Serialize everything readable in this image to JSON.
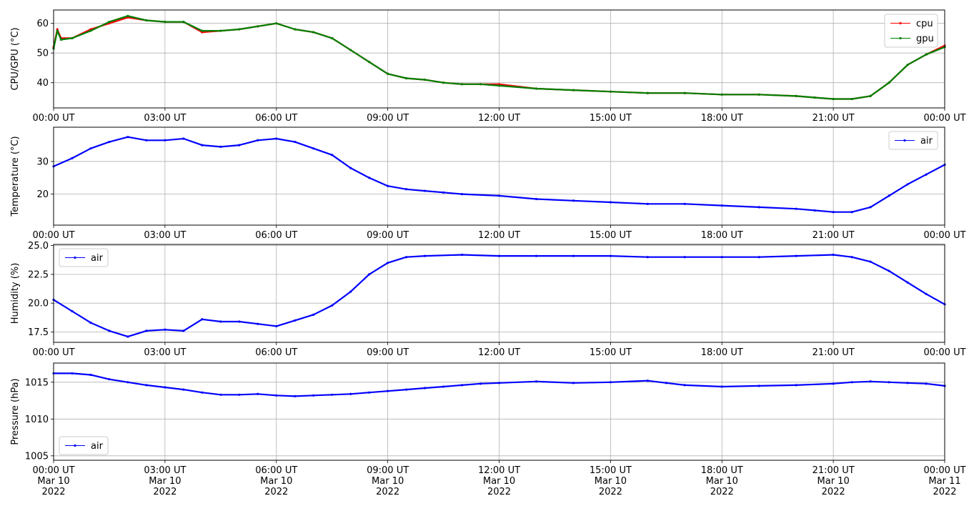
{
  "chart_data": [
    {
      "type": "line",
      "ylabel": "CPU/GPU (°C)",
      "ylim": [
        31.5,
        64.5
      ],
      "yticks": [
        40,
        50,
        60
      ],
      "xlim": [
        0,
        24
      ],
      "grid": true,
      "legend_position": "top-right",
      "x_tick_labels": [
        "00:00 UT",
        "03:00 UT",
        "06:00 UT",
        "09:00 UT",
        "12:00 UT",
        "15:00 UT",
        "18:00 UT",
        "21:00 UT",
        "00:00 UT"
      ],
      "series": [
        {
          "name": "cpu",
          "color": "#ff0000",
          "x": [
            0,
            0.1,
            0.2,
            0.5,
            1,
            1.5,
            2,
            2.5,
            3,
            3.5,
            4,
            4.5,
            5,
            5.5,
            6,
            6.5,
            7,
            7.5,
            8,
            8.5,
            9,
            9.5,
            10,
            10.5,
            11,
            11.5,
            12,
            13,
            14,
            15,
            16,
            17,
            18,
            19,
            20,
            20.5,
            21,
            21.5,
            22,
            22.5,
            23,
            23.5,
            24
          ],
          "y": [
            52,
            58,
            55,
            55,
            58,
            60,
            62,
            61,
            60.5,
            60.5,
            57,
            57.5,
            58,
            59,
            60,
            58,
            57,
            55,
            51,
            47,
            43,
            41.5,
            41,
            40,
            39.5,
            39.5,
            39.5,
            38,
            37.5,
            37,
            36.5,
            36.5,
            36,
            36,
            35.5,
            35,
            34.5,
            34.5,
            35.5,
            40,
            46,
            49.5,
            52.5
          ]
        },
        {
          "name": "gpu",
          "color": "#008000",
          "x": [
            0,
            0.1,
            0.2,
            0.5,
            1,
            1.5,
            2,
            2.5,
            3,
            3.5,
            4,
            4.5,
            5,
            5.5,
            6,
            6.5,
            7,
            7.5,
            8,
            8.5,
            9,
            9.5,
            10,
            10.5,
            11,
            11.5,
            12,
            13,
            14,
            15,
            16,
            17,
            18,
            19,
            20,
            20.5,
            21,
            21.5,
            22,
            22.5,
            23,
            23.5,
            24
          ],
          "y": [
            51.5,
            57.5,
            54.5,
            55,
            57.5,
            60.5,
            62.5,
            61,
            60.5,
            60.5,
            57.5,
            57.5,
            58,
            59,
            60,
            58,
            57,
            55,
            51,
            47,
            43,
            41.5,
            41,
            40,
            39.5,
            39.5,
            39,
            38,
            37.5,
            37,
            36.5,
            36.5,
            36,
            36,
            35.5,
            35,
            34.5,
            34.5,
            35.5,
            40,
            46,
            49.5,
            52
          ]
        }
      ]
    },
    {
      "type": "line",
      "ylabel": "Temperature (°C)",
      "ylim": [
        10.5,
        40.5
      ],
      "yticks": [
        20,
        30
      ],
      "xlim": [
        0,
        24
      ],
      "grid": true,
      "legend_position": "top-right",
      "x_tick_labels": [
        "00:00 UT",
        "03:00 UT",
        "06:00 UT",
        "09:00 UT",
        "12:00 UT",
        "15:00 UT",
        "18:00 UT",
        "21:00 UT",
        "00:00 UT"
      ],
      "series": [
        {
          "name": "air",
          "color": "#0000ff",
          "x": [
            0,
            0.5,
            1,
            1.5,
            2,
            2.5,
            3,
            3.5,
            4,
            4.5,
            5,
            5.5,
            6,
            6.5,
            7,
            7.5,
            8,
            8.5,
            9,
            9.5,
            10,
            10.5,
            11,
            12,
            13,
            14,
            15,
            16,
            17,
            18,
            19,
            20,
            20.5,
            21,
            21.5,
            22,
            22.5,
            23,
            23.5,
            24
          ],
          "y": [
            28.5,
            31,
            34,
            36,
            37.5,
            36.5,
            36.5,
            37,
            35,
            34.5,
            35,
            36.5,
            37,
            36,
            34,
            32,
            28,
            25,
            22.5,
            21.5,
            21,
            20.5,
            20,
            19.5,
            18.5,
            18,
            17.5,
            17,
            17,
            16.5,
            16,
            15.5,
            15,
            14.5,
            14.5,
            16,
            19.5,
            23,
            26,
            29
          ]
        }
      ]
    },
    {
      "type": "line",
      "ylabel": "Humidity (%)",
      "ylim": [
        16.6,
        25.1
      ],
      "yticks": [
        17.5,
        20.0,
        22.5,
        25.0
      ],
      "ytick_labels": [
        "17.5",
        "20.0",
        "22.5",
        "25.0"
      ],
      "xlim": [
        0,
        24
      ],
      "grid": true,
      "legend_position": "top-left",
      "x_tick_labels": [
        "00:00 UT",
        "03:00 UT",
        "06:00 UT",
        "09:00 UT",
        "12:00 UT",
        "15:00 UT",
        "18:00 UT",
        "21:00 UT",
        "00:00 UT"
      ],
      "series": [
        {
          "name": "air",
          "color": "#0000ff",
          "x": [
            0,
            0.5,
            1,
            1.5,
            2,
            2.5,
            3,
            3.5,
            4,
            4.5,
            5,
            5.5,
            6,
            6.5,
            7,
            7.5,
            8,
            8.5,
            9,
            9.5,
            10,
            11,
            12,
            13,
            14,
            15,
            16,
            17,
            18,
            19,
            20,
            21,
            21.5,
            22,
            22.5,
            23,
            23.5,
            24
          ],
          "y": [
            20.3,
            19.3,
            18.3,
            17.6,
            17.1,
            17.6,
            17.7,
            17.6,
            18.6,
            18.4,
            18.4,
            18.2,
            18.0,
            18.5,
            19.0,
            19.8,
            21.0,
            22.5,
            23.5,
            24.0,
            24.1,
            24.2,
            24.1,
            24.1,
            24.1,
            24.1,
            24.0,
            24.0,
            24.0,
            24.0,
            24.1,
            24.2,
            24.0,
            23.6,
            22.8,
            21.8,
            20.8,
            19.9
          ]
        }
      ]
    },
    {
      "type": "line",
      "ylabel": "Pressure (hPa)",
      "ylim": [
        1004.4,
        1017.6
      ],
      "yticks": [
        1005,
        1010,
        1015
      ],
      "xlim": [
        0,
        24
      ],
      "grid": true,
      "legend_position": "bottom-left",
      "x_tick_labels": [
        "00:00 UT\nMar 10\n2022",
        "03:00 UT\nMar 10\n2022",
        "06:00 UT\nMar 10\n2022",
        "09:00 UT\nMar 10\n2022",
        "12:00 UT\nMar 10\n2022",
        "15:00 UT\nMar 10\n2022",
        "18:00 UT\nMar 10\n2022",
        "21:00 UT\nMar 10\n2022",
        "00:00 UT\nMar 11\n2022"
      ],
      "series": [
        {
          "name": "air",
          "color": "#0000ff",
          "x": [
            0,
            0.5,
            1,
            1.5,
            2,
            2.5,
            3,
            3.5,
            4,
            4.5,
            5,
            5.5,
            6,
            6.5,
            7,
            7.5,
            8,
            8.5,
            9,
            9.5,
            10,
            10.5,
            11,
            11.5,
            12,
            13,
            14,
            15,
            16,
            16.5,
            17,
            18,
            19,
            20,
            21,
            21.5,
            22,
            22.5,
            23,
            23.5,
            24
          ],
          "y": [
            1016.2,
            1016.2,
            1016.0,
            1015.4,
            1015.0,
            1014.6,
            1014.3,
            1014.0,
            1013.6,
            1013.3,
            1013.3,
            1013.4,
            1013.2,
            1013.1,
            1013.2,
            1013.3,
            1013.4,
            1013.6,
            1013.8,
            1014.0,
            1014.2,
            1014.4,
            1014.6,
            1014.8,
            1014.9,
            1015.1,
            1014.9,
            1015.0,
            1015.2,
            1014.9,
            1014.6,
            1014.4,
            1014.5,
            1014.6,
            1014.8,
            1015.0,
            1015.1,
            1015.0,
            1014.9,
            1014.8,
            1014.5
          ]
        }
      ]
    }
  ]
}
